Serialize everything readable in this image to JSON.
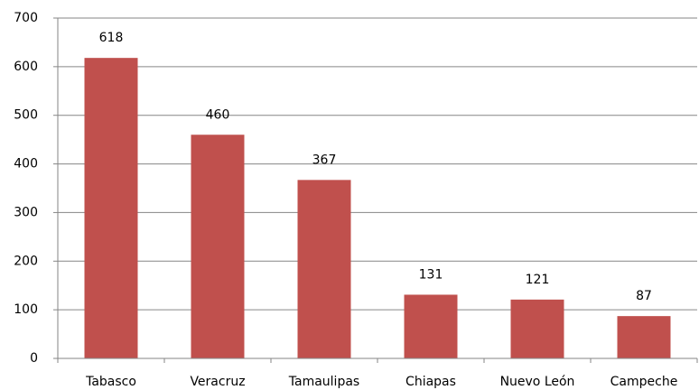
{
  "chart_data": {
    "type": "bar",
    "categories": [
      "Tabasco",
      "Veracruz",
      "Tamaulipas",
      "Chiapas",
      "Nuevo León",
      "Campeche"
    ],
    "values": [
      618,
      460,
      367,
      131,
      121,
      87
    ],
    "color": "#c0504d",
    "ylim": [
      0,
      700
    ],
    "yticks": [
      0,
      100,
      200,
      300,
      400,
      500,
      600,
      700
    ],
    "grid": true
  }
}
